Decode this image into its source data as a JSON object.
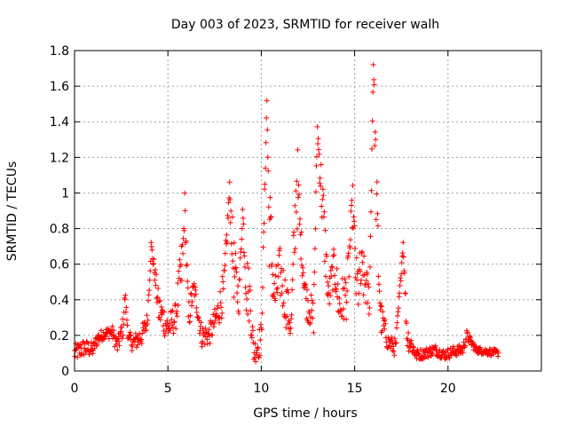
{
  "chart_data": {
    "type": "scatter",
    "title": "Day 003 of 2023, SRMTID for receiver walh",
    "xlabel": "GPS time / hours",
    "ylabel": "SRMTID / TECUs",
    "xlim": [
      0,
      25
    ],
    "ylim": [
      0,
      1.8
    ],
    "x_ticks": [
      0,
      5,
      10,
      15,
      20
    ],
    "x_tick_labels": [
      "0",
      "5",
      "10",
      "15",
      "20"
    ],
    "y_ticks": [
      0,
      0.2,
      0.4,
      0.6,
      0.8,
      1.0,
      1.2,
      1.4,
      1.6,
      1.8
    ],
    "y_tick_labels": [
      "0",
      "0.2",
      "0.4",
      "0.6",
      "0.8",
      "1",
      "1.2",
      "1.4",
      "1.6",
      "1.8"
    ],
    "grid": true,
    "marker": "plus",
    "color": "#ff0000",
    "envelope": [
      [
        0.0,
        0.1,
        0.05
      ],
      [
        0.5,
        0.13,
        0.05
      ],
      [
        1.0,
        0.12,
        0.04
      ],
      [
        1.2,
        0.18,
        0.04
      ],
      [
        1.6,
        0.21,
        0.03
      ],
      [
        2.0,
        0.22,
        0.04
      ],
      [
        2.3,
        0.14,
        0.05
      ],
      [
        2.6,
        0.25,
        0.06
      ],
      [
        2.7,
        0.42,
        0.05
      ],
      [
        2.9,
        0.17,
        0.05
      ],
      [
        3.2,
        0.16,
        0.05
      ],
      [
        3.6,
        0.2,
        0.06
      ],
      [
        3.9,
        0.28,
        0.05
      ],
      [
        4.1,
        0.7,
        0.04
      ],
      [
        4.3,
        0.55,
        0.05
      ],
      [
        4.5,
        0.35,
        0.1
      ],
      [
        5.0,
        0.24,
        0.08
      ],
      [
        5.4,
        0.3,
        0.08
      ],
      [
        5.8,
        0.62,
        0.2
      ],
      [
        5.9,
        0.95,
        0.06
      ],
      [
        6.1,
        0.3,
        0.1
      ],
      [
        6.4,
        0.47,
        0.05
      ],
      [
        6.8,
        0.2,
        0.07
      ],
      [
        7.2,
        0.2,
        0.06
      ],
      [
        7.6,
        0.3,
        0.08
      ],
      [
        8.0,
        0.45,
        0.12
      ],
      [
        8.3,
        1.02,
        0.05
      ],
      [
        8.5,
        0.6,
        0.2
      ],
      [
        8.8,
        0.4,
        0.08
      ],
      [
        9.0,
        0.9,
        0.04
      ],
      [
        9.2,
        0.5,
        0.2
      ],
      [
        9.4,
        0.4,
        0.15
      ],
      [
        9.6,
        0.1,
        0.06
      ],
      [
        10.0,
        0.18,
        0.1
      ],
      [
        10.3,
        1.52,
        0.04
      ],
      [
        10.4,
        0.9,
        0.3
      ],
      [
        10.7,
        0.4,
        0.15
      ],
      [
        11.0,
        0.55,
        0.15
      ],
      [
        11.3,
        0.4,
        0.15
      ],
      [
        11.6,
        0.25,
        0.1
      ],
      [
        11.9,
        1.1,
        0.3
      ],
      [
        12.1,
        0.75,
        0.1
      ],
      [
        12.4,
        0.4,
        0.1
      ],
      [
        12.8,
        0.3,
        0.1
      ],
      [
        13.0,
        1.36,
        0.06
      ],
      [
        13.3,
        0.9,
        0.2
      ],
      [
        13.6,
        0.4,
        0.1
      ],
      [
        13.9,
        0.6,
        0.1
      ],
      [
        14.2,
        0.35,
        0.15
      ],
      [
        14.6,
        0.45,
        0.15
      ],
      [
        14.9,
        0.95,
        0.1
      ],
      [
        15.1,
        0.45,
        0.2
      ],
      [
        15.4,
        0.55,
        0.15
      ],
      [
        15.8,
        0.4,
        0.1
      ],
      [
        16.0,
        1.75,
        0.05
      ],
      [
        16.2,
        0.8,
        0.3
      ],
      [
        16.4,
        0.3,
        0.1
      ],
      [
        16.8,
        0.16,
        0.05
      ],
      [
        17.2,
        0.13,
        0.05
      ],
      [
        17.6,
        0.72,
        0.02
      ],
      [
        17.8,
        0.2,
        0.08
      ],
      [
        18.3,
        0.09,
        0.03
      ],
      [
        18.8,
        0.1,
        0.03
      ],
      [
        19.3,
        0.12,
        0.03
      ],
      [
        19.8,
        0.09,
        0.03
      ],
      [
        20.3,
        0.11,
        0.03
      ],
      [
        20.8,
        0.12,
        0.03
      ],
      [
        21.0,
        0.2,
        0.03
      ],
      [
        21.5,
        0.12,
        0.02
      ],
      [
        22.0,
        0.11,
        0.02
      ],
      [
        22.7,
        0.1,
        0.02
      ]
    ]
  }
}
